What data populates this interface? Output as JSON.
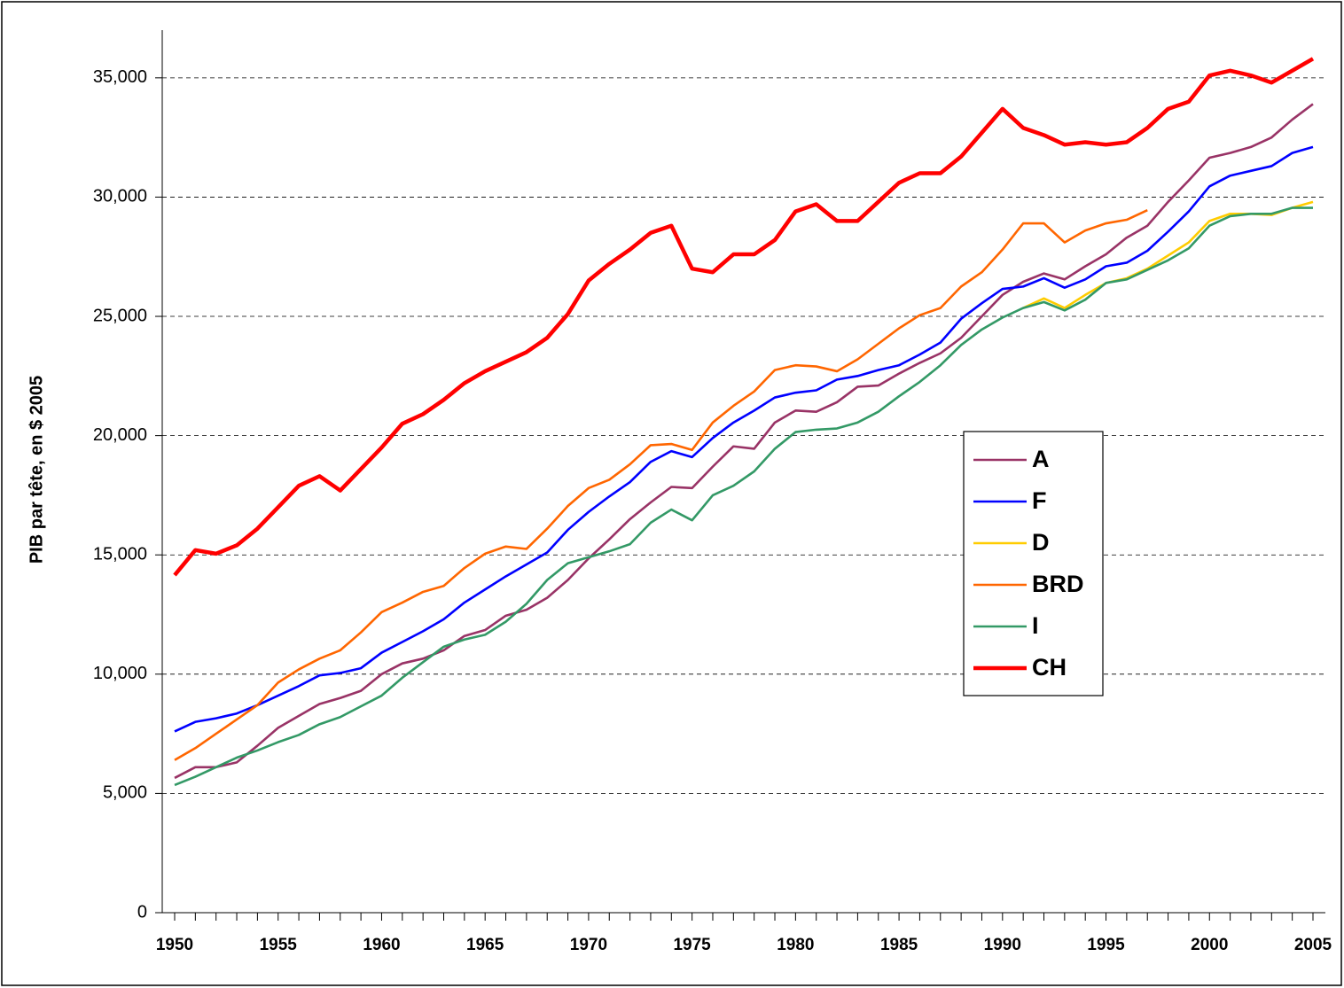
{
  "chart_data": {
    "type": "line",
    "y_label": "PIB par tête, en $ 2005",
    "x": [
      1950,
      1951,
      1952,
      1953,
      1954,
      1955,
      1956,
      1957,
      1958,
      1959,
      1960,
      1961,
      1962,
      1963,
      1964,
      1965,
      1966,
      1967,
      1968,
      1969,
      1970,
      1971,
      1972,
      1973,
      1974,
      1975,
      1976,
      1977,
      1978,
      1979,
      1980,
      1981,
      1982,
      1983,
      1984,
      1985,
      1986,
      1987,
      1988,
      1989,
      1990,
      1991,
      1992,
      1993,
      1994,
      1995,
      1996,
      1997,
      1998,
      1999,
      2000,
      2001,
      2002,
      2003,
      2004,
      2005
    ],
    "xlim": [
      1949.4,
      2005.6
    ],
    "xticks": [
      1950,
      1955,
      1960,
      1965,
      1970,
      1975,
      1980,
      1985,
      1990,
      1995,
      2000,
      2005
    ],
    "ylim": [
      0,
      37000
    ],
    "yticks": [
      0,
      {
        "value": 5000,
        "label": "5,000"
      },
      {
        "value": 10000,
        "label": "10,000"
      },
      {
        "value": 15000,
        "label": "15,000"
      },
      {
        "value": 20000,
        "label": "20,000"
      },
      {
        "value": 25000,
        "label": "25,000"
      },
      {
        "value": 30000,
        "label": "30,000"
      },
      {
        "value": 35000,
        "label": "35,000"
      }
    ],
    "grid": true,
    "legend": "right",
    "series": [
      {
        "name": "A",
        "color": "#993366",
        "values": [
          5650,
          6100,
          6100,
          6300,
          7000,
          7750,
          8250,
          8750,
          9000,
          9300,
          10000,
          10450,
          10650,
          11000,
          11600,
          11850,
          12450,
          12700,
          13200,
          13950,
          14850,
          15650,
          16500,
          17200,
          17850,
          17800,
          18700,
          19550,
          19450,
          20550,
          21050,
          21000,
          21400,
          22050,
          22100,
          22600,
          23050,
          23450,
          24100,
          25000,
          25900,
          26450,
          26800,
          26550,
          27100,
          27600,
          28300,
          28800,
          29800,
          30700,
          31650,
          31850,
          32100,
          32500,
          33250,
          33900
        ]
      },
      {
        "name": "F",
        "color": "#0000FF",
        "values": [
          7600,
          8000,
          8150,
          8350,
          8700,
          9100,
          9500,
          9950,
          10050,
          10250,
          10900,
          11350,
          11800,
          12300,
          13000,
          13550,
          14100,
          14600,
          15100,
          16050,
          16800,
          17450,
          18050,
          18900,
          19350,
          19100,
          19900,
          20550,
          21050,
          21600,
          21800,
          21900,
          22350,
          22500,
          22750,
          22950,
          23400,
          23900,
          24900,
          25550,
          26150,
          26250,
          26600,
          26200,
          26550,
          27100,
          27250,
          27750,
          28550,
          29400,
          30450,
          30900,
          31100,
          31300,
          31850,
          32100
        ]
      },
      {
        "name": "D",
        "color": "#FFCC00",
        "values": [
          null,
          null,
          null,
          null,
          null,
          null,
          null,
          null,
          null,
          null,
          null,
          null,
          null,
          null,
          null,
          null,
          null,
          null,
          null,
          null,
          null,
          null,
          null,
          null,
          null,
          null,
          null,
          null,
          null,
          null,
          null,
          null,
          null,
          null,
          null,
          null,
          null,
          null,
          null,
          null,
          null,
          25350,
          25750,
          25350,
          25900,
          26400,
          26600,
          27000,
          27550,
          28100,
          29000,
          29300,
          29300,
          29250,
          29550,
          29800
        ]
      },
      {
        "name": "BRD",
        "color": "#FF6600",
        "values": [
          6400,
          6900,
          7500,
          8100,
          8700,
          9650,
          10200,
          10650,
          11000,
          11750,
          12600,
          13000,
          13450,
          13700,
          14450,
          15050,
          15350,
          15250,
          16100,
          17050,
          17800,
          18150,
          18800,
          19600,
          19650,
          19400,
          20550,
          21250,
          21850,
          22750,
          22950,
          22900,
          22700,
          23200,
          23850,
          24500,
          25050,
          25350,
          26250,
          26850,
          27800,
          28900,
          28900,
          28100,
          28600,
          28900,
          29050,
          29450,
          null,
          null,
          null,
          null,
          null,
          null,
          null,
          null
        ]
      },
      {
        "name": "I",
        "color": "#339966",
        "values": [
          5350,
          5700,
          6100,
          6500,
          6800,
          7150,
          7450,
          7900,
          8200,
          8650,
          9100,
          9850,
          10500,
          11150,
          11450,
          11650,
          12200,
          12950,
          13950,
          14650,
          14900,
          15150,
          15450,
          16350,
          16900,
          16450,
          17500,
          17900,
          18500,
          19450,
          20150,
          20250,
          20300,
          20550,
          21000,
          21650,
          22250,
          22950,
          23800,
          24450,
          24950,
          25350,
          25600,
          25250,
          25700,
          26400,
          26550,
          26950,
          27350,
          27850,
          28800,
          29200,
          29300,
          29300,
          29550,
          29550
        ]
      },
      {
        "name": "CH",
        "color": "#FF0000",
        "values": [
          14150,
          15200,
          15050,
          15400,
          16100,
          17000,
          17900,
          18300,
          17700,
          18600,
          19500,
          20500,
          20900,
          21500,
          22200,
          22700,
          23100,
          23500,
          24100,
          25100,
          26500,
          27200,
          27800,
          28500,
          28800,
          27000,
          26850,
          27600,
          27600,
          28200,
          29400,
          29700,
          29000,
          29000,
          29800,
          30600,
          31000,
          31000,
          31700,
          32700,
          33700,
          32900,
          32600,
          32200,
          32300,
          32200,
          32300,
          32900,
          33700,
          34000,
          35100,
          35300,
          35100,
          34800,
          35300,
          35800
        ]
      }
    ]
  }
}
